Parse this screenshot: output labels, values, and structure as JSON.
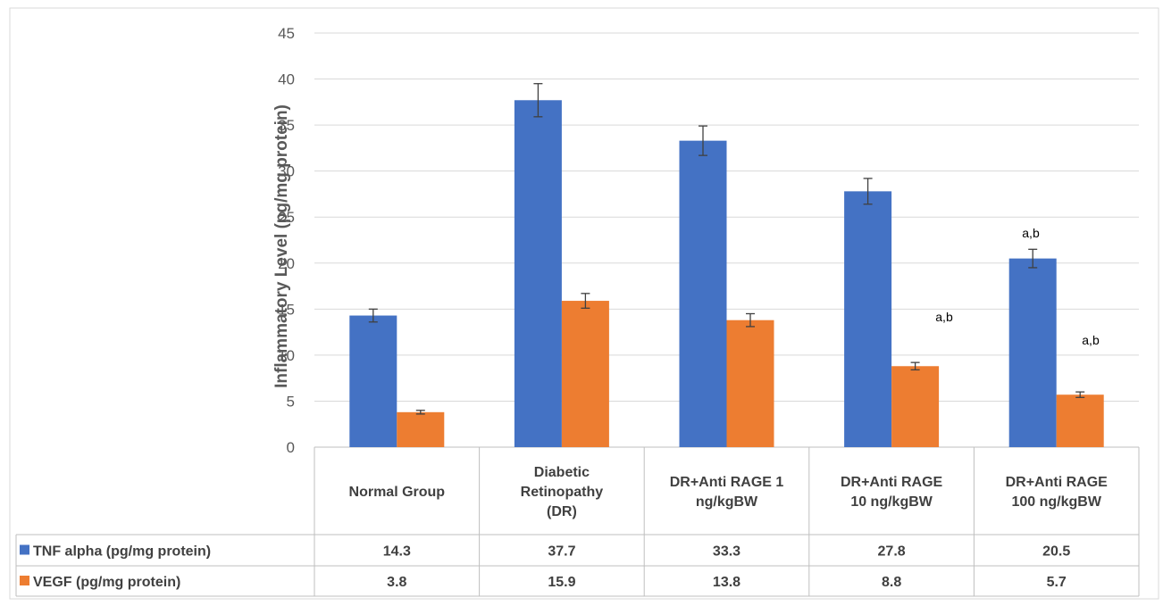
{
  "chart_data": {
    "type": "bar",
    "title": "",
    "ylabel": "Inflammatory Level (pg/mg protein)",
    "ylim": [
      0,
      45
    ],
    "yticks": [
      0,
      5,
      10,
      15,
      20,
      25,
      30,
      35,
      40,
      45
    ],
    "grid": true,
    "legend": "data-table",
    "categories": [
      [
        "Normal Group"
      ],
      [
        "Diabetic",
        "Retinopathy",
        "(DR)"
      ],
      [
        "DR+Anti RAGE 1",
        "ng/kgBW"
      ],
      [
        "DR+Anti RAGE",
        "10 ng/kgBW"
      ],
      [
        "DR+Anti RAGE",
        "100 ng/kgBW"
      ]
    ],
    "series": [
      {
        "name": "TNF alpha (pg/mg protein)",
        "color": "#4472C4",
        "values": [
          14.3,
          37.7,
          33.3,
          27.8,
          20.5
        ],
        "errors": [
          0.7,
          1.8,
          1.6,
          1.4,
          1.0
        ],
        "value_labels": [
          "14.3",
          "37.7",
          "33.3",
          "27.8",
          "20.5"
        ],
        "annotations": [
          "",
          "",
          "",
          "",
          "a,b"
        ]
      },
      {
        "name": "VEGF (pg/mg protein)",
        "color": "#ED7D31",
        "values": [
          3.8,
          15.9,
          13.8,
          8.8,
          5.7
        ],
        "errors": [
          0.2,
          0.8,
          0.7,
          0.4,
          0.3
        ],
        "value_labels": [
          "3.8",
          "15.9",
          "13.8",
          "8.8",
          "5.7"
        ],
        "annotations": [
          "",
          "",
          "",
          "a,b",
          "a,b"
        ]
      }
    ]
  }
}
